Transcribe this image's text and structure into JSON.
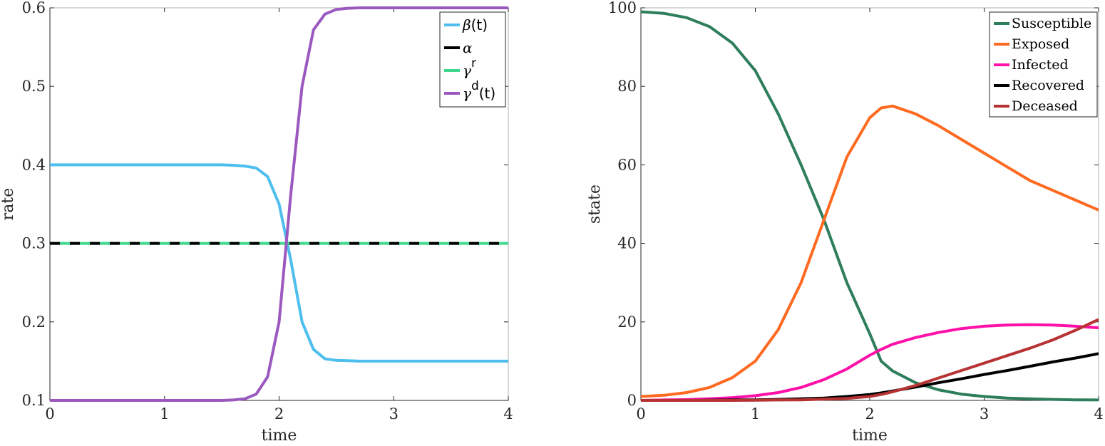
{
  "chart_data": [
    {
      "type": "line",
      "title": "",
      "xlabel": "time",
      "ylabel": "rate",
      "xlim": [
        0,
        4
      ],
      "ylim": [
        0.1,
        0.6
      ],
      "xticks": [
        "0",
        "1",
        "2",
        "3",
        "4"
      ],
      "yticks": [
        "0.1",
        "0.2",
        "0.3",
        "0.4",
        "0.5",
        "0.6"
      ],
      "grid": false,
      "legend_position": "northeast",
      "x": [
        0,
        0.5,
        1.0,
        1.5,
        1.6,
        1.7,
        1.8,
        1.9,
        2.0,
        2.1,
        2.2,
        2.3,
        2.4,
        2.5,
        2.6,
        2.7,
        3.0,
        3.5,
        4.0
      ],
      "series": [
        {
          "name": "β(t)",
          "legend_base": "β",
          "legend_sup": "",
          "legend_suffix": "(t)",
          "color": "#4DBEEE",
          "dash": "",
          "values": [
            0.4,
            0.4,
            0.4,
            0.4,
            0.3995,
            0.3985,
            0.396,
            0.385,
            0.35,
            0.28,
            0.2,
            0.165,
            0.153,
            0.151,
            0.1505,
            0.15,
            0.15,
            0.15,
            0.15
          ]
        },
        {
          "name": "α",
          "legend_base": "α",
          "legend_sup": "",
          "legend_suffix": "",
          "color": "#000000",
          "dash": "14,14",
          "values": [
            0.3,
            0.3,
            0.3,
            0.3,
            0.3,
            0.3,
            0.3,
            0.3,
            0.3,
            0.3,
            0.3,
            0.3,
            0.3,
            0.3,
            0.3,
            0.3,
            0.3,
            0.3,
            0.3
          ]
        },
        {
          "name": "γ^r",
          "legend_base": "γ",
          "legend_sup": "r",
          "legend_suffix": "",
          "color": "#3FD98E",
          "dash": "",
          "values": [
            0.3,
            0.3,
            0.3,
            0.3,
            0.3,
            0.3,
            0.3,
            0.3,
            0.3,
            0.3,
            0.3,
            0.3,
            0.3,
            0.3,
            0.3,
            0.3,
            0.3,
            0.3,
            0.3
          ]
        },
        {
          "name": "γ^d(t)",
          "legend_base": "γ",
          "legend_sup": "d",
          "legend_suffix": "(t)",
          "color": "#9B59C0",
          "dash": "",
          "values": [
            0.1,
            0.1,
            0.1,
            0.1,
            0.1005,
            0.102,
            0.108,
            0.13,
            0.2,
            0.36,
            0.5,
            0.572,
            0.592,
            0.598,
            0.5995,
            0.6,
            0.6,
            0.6,
            0.6
          ]
        }
      ]
    },
    {
      "type": "line",
      "title": "",
      "xlabel": "time",
      "ylabel": "state",
      "xlim": [
        0,
        4
      ],
      "ylim": [
        0,
        100
      ],
      "xticks": [
        "0",
        "1",
        "2",
        "3",
        "4"
      ],
      "yticks": [
        "0",
        "20",
        "40",
        "60",
        "80",
        "100"
      ],
      "grid": false,
      "legend_position": "northeast",
      "x": [
        0,
        0.2,
        0.4,
        0.6,
        0.8,
        1.0,
        1.2,
        1.4,
        1.6,
        1.8,
        2.0,
        2.1,
        2.2,
        2.4,
        2.6,
        2.8,
        3.0,
        3.2,
        3.4,
        3.6,
        3.8,
        4.0
      ],
      "series": [
        {
          "name": "Susceptible",
          "color": "#2E7D5B",
          "values": [
            99,
            98.6,
            97.5,
            95.2,
            91,
            84,
            73,
            60,
            46,
            30,
            17,
            10,
            7.5,
            4.5,
            2.7,
            1.6,
            1.0,
            0.6,
            0.4,
            0.25,
            0.15,
            0.1
          ]
        },
        {
          "name": "Exposed",
          "color": "#FF6A21",
          "values": [
            1,
            1.3,
            2.0,
            3.3,
            5.8,
            10,
            18,
            30,
            46,
            62,
            72,
            74.5,
            75,
            73,
            70,
            66.5,
            63,
            59.5,
            56,
            53.5,
            51,
            48.5
          ]
        },
        {
          "name": "Infected",
          "color": "#FF10A8",
          "values": [
            0,
            0.1,
            0.2,
            0.4,
            0.7,
            1.2,
            2.0,
            3.3,
            5.3,
            8.0,
            11.5,
            13.0,
            14.3,
            16.0,
            17.3,
            18.3,
            18.9,
            19.2,
            19.3,
            19.2,
            18.9,
            18.5
          ]
        },
        {
          "name": "Recovered",
          "color": "#000000",
          "values": [
            0,
            0,
            0,
            0.05,
            0.1,
            0.15,
            0.25,
            0.4,
            0.6,
            1.0,
            1.5,
            1.9,
            2.4,
            3.4,
            4.5,
            5.5,
            6.6,
            7.6,
            8.7,
            9.8,
            10.8,
            11.9
          ]
        },
        {
          "name": "Deceased",
          "color": "#B73333",
          "values": [
            0,
            0,
            0,
            0,
            0,
            0.05,
            0.1,
            0.15,
            0.3,
            0.5,
            1.0,
            1.5,
            2.2,
            3.8,
            5.7,
            7.6,
            9.5,
            11.4,
            13.3,
            15.4,
            17.9,
            20.6
          ]
        }
      ]
    }
  ]
}
